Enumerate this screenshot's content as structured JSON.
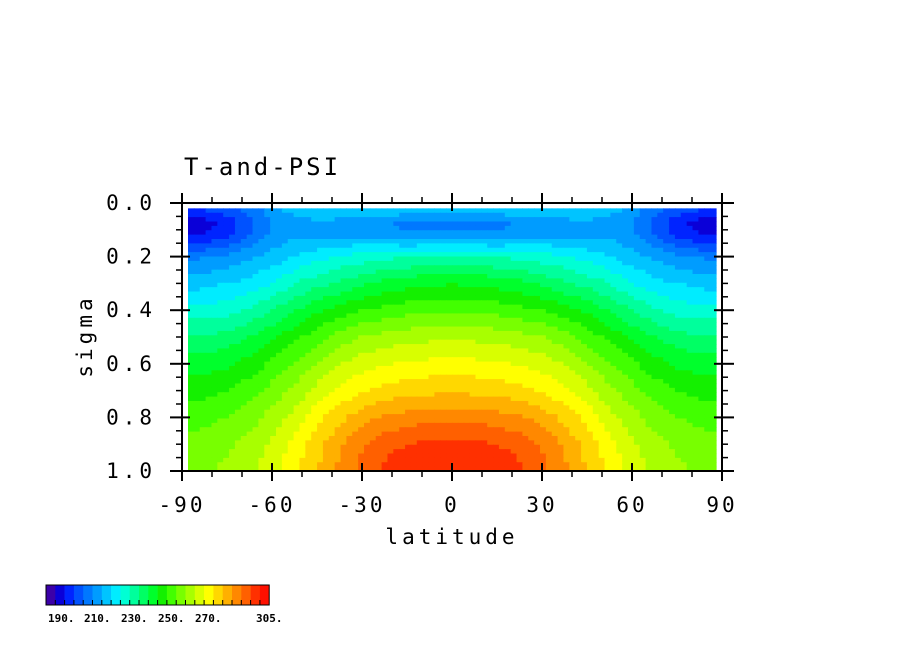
{
  "chart_data": {
    "type": "heatmap",
    "title": "T-and-PSI",
    "xlabel": "latitude",
    "ylabel": "sigma",
    "xlim": [
      -90,
      90
    ],
    "ylim": [
      0.0,
      1.0
    ],
    "y_inverted": true,
    "x_ticks": [
      "-90",
      "-60",
      "-30",
      "0",
      "30",
      "60",
      "90"
    ],
    "x_tick_values": [
      -90,
      -60,
      -30,
      0,
      30,
      60,
      90
    ],
    "y_ticks": [
      "0.0",
      "0.2",
      "0.4",
      "0.6",
      "0.8",
      "1.0"
    ],
    "y_tick_values": [
      0.0,
      0.2,
      0.4,
      0.6,
      0.8,
      1.0
    ],
    "x": [
      -90,
      -85,
      -80,
      -75,
      -70,
      -65,
      -60,
      -55,
      -50,
      -45,
      -40,
      -35,
      -30,
      -25,
      -20,
      -15,
      -10,
      -5,
      0,
      5,
      10,
      15,
      20,
      25,
      30,
      35,
      40,
      45,
      50,
      55,
      60,
      65,
      70,
      75,
      80,
      85,
      90
    ],
    "sigma": [
      0.02,
      0.07,
      0.12,
      0.2,
      0.3,
      0.4,
      0.5,
      0.6,
      0.7,
      0.8,
      0.9,
      1.0
    ],
    "values": [
      [
        205,
        205,
        207,
        209,
        211,
        214,
        218,
        221,
        223,
        225,
        226,
        226,
        226,
        226,
        226,
        226,
        225,
        224,
        224,
        224,
        225,
        226,
        226,
        226,
        226,
        226,
        226,
        225,
        223,
        221,
        218,
        214,
        211,
        209,
        207,
        205,
        205
      ],
      [
        198,
        197,
        199,
        202,
        206,
        211,
        216,
        218,
        219,
        219,
        219,
        218,
        218,
        218,
        215,
        213,
        213,
        213,
        213,
        213,
        213,
        213,
        215,
        218,
        218,
        218,
        219,
        219,
        219,
        218,
        216,
        211,
        206,
        202,
        199,
        197,
        198
      ],
      [
        200,
        199,
        201,
        204,
        208,
        212,
        216,
        218,
        219,
        219,
        219,
        219,
        219,
        218,
        217,
        216,
        216,
        216,
        216,
        216,
        216,
        216,
        217,
        218,
        219,
        219,
        219,
        219,
        219,
        218,
        216,
        212,
        208,
        204,
        201,
        199,
        200
      ],
      [
        214,
        214,
        215,
        216,
        218,
        220,
        222,
        224,
        226,
        228,
        230,
        231,
        232,
        233,
        234,
        234,
        235,
        235,
        235,
        235,
        235,
        234,
        234,
        233,
        232,
        231,
        230,
        228,
        226,
        224,
        222,
        220,
        218,
        216,
        215,
        214,
        214
      ],
      [
        223,
        223,
        224,
        225,
        226,
        228,
        230,
        233,
        236,
        238,
        240,
        242,
        244,
        246,
        247,
        248,
        249,
        249,
        250,
        249,
        249,
        248,
        247,
        246,
        244,
        242,
        240,
        238,
        236,
        233,
        230,
        228,
        226,
        225,
        224,
        223,
        223
      ],
      [
        232,
        232,
        232,
        233,
        235,
        237,
        240,
        243,
        246,
        249,
        251,
        253,
        255,
        256,
        257,
        258,
        259,
        259,
        259,
        259,
        259,
        258,
        257,
        256,
        255,
        253,
        251,
        249,
        246,
        243,
        240,
        237,
        235,
        233,
        232,
        232,
        232
      ],
      [
        241,
        241,
        241,
        242,
        244,
        246,
        249,
        252,
        255,
        258,
        261,
        263,
        265,
        266,
        267,
        268,
        268,
        269,
        269,
        269,
        268,
        268,
        267,
        266,
        265,
        263,
        261,
        258,
        255,
        252,
        249,
        246,
        244,
        242,
        241,
        241,
        241
      ],
      [
        248,
        248,
        248,
        249,
        251,
        253,
        256,
        259,
        262,
        265,
        268,
        271,
        273,
        274,
        275,
        276,
        276,
        277,
        277,
        277,
        276,
        276,
        275,
        274,
        273,
        271,
        268,
        265,
        262,
        259,
        256,
        253,
        251,
        249,
        248,
        248,
        248
      ],
      [
        253,
        253,
        254,
        255,
        257,
        259,
        262,
        265,
        268,
        272,
        275,
        277,
        279,
        281,
        282,
        283,
        283,
        284,
        284,
        284,
        283,
        283,
        282,
        281,
        279,
        277,
        275,
        272,
        268,
        265,
        262,
        259,
        257,
        255,
        254,
        253,
        253
      ],
      [
        258,
        258,
        259,
        260,
        262,
        264,
        267,
        270,
        274,
        278,
        282,
        285,
        288,
        290,
        291,
        292,
        293,
        293,
        293,
        293,
        293,
        292,
        291,
        290,
        288,
        285,
        282,
        278,
        274,
        270,
        267,
        264,
        262,
        260,
        259,
        258,
        258
      ],
      [
        262,
        262,
        263,
        264,
        266,
        268,
        271,
        275,
        279,
        283,
        287,
        291,
        294,
        297,
        299,
        300,
        301,
        301,
        302,
        301,
        301,
        300,
        299,
        297,
        294,
        291,
        287,
        283,
        279,
        275,
        271,
        268,
        266,
        264,
        263,
        262,
        262
      ],
      [
        264,
        264,
        265,
        266,
        268,
        270,
        273,
        277,
        281,
        285,
        289,
        293,
        297,
        300,
        302,
        303,
        304,
        304,
        304,
        304,
        304,
        303,
        302,
        300,
        297,
        293,
        289,
        285,
        281,
        277,
        273,
        270,
        268,
        266,
        265,
        264,
        264
      ]
    ],
    "contour_levels": [
      190,
      195,
      200,
      205,
      210,
      215,
      220,
      225,
      230,
      235,
      240,
      245,
      250,
      255,
      260,
      265,
      270,
      275,
      280,
      285,
      290,
      295,
      300,
      305
    ],
    "colorbar": {
      "colors": [
        "#3b00a8",
        "#0a00d8",
        "#0024ff",
        "#0052ff",
        "#0078ff",
        "#009cff",
        "#00c4ff",
        "#00ecff",
        "#00ffd4",
        "#00ff9c",
        "#00ff64",
        "#00ff2c",
        "#14f000",
        "#42ff00",
        "#78ff00",
        "#a8ff00",
        "#d8ff00",
        "#ffff00",
        "#ffd800",
        "#ffb000",
        "#ff8800",
        "#ff6000",
        "#ff3000",
        "#ff1000"
      ],
      "labels": [
        "190.",
        "210.",
        "230.",
        "250.",
        "270.",
        "305."
      ]
    },
    "grid": false,
    "legend": "bottom-left colorbar"
  }
}
